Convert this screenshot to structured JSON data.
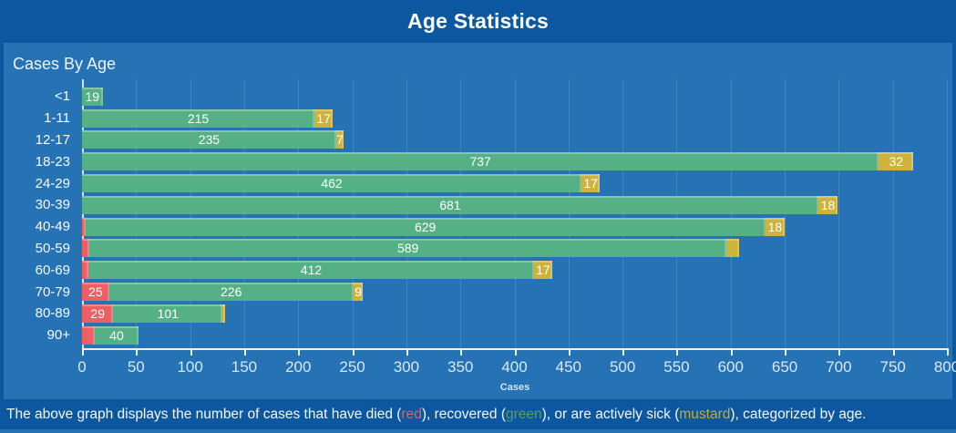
{
  "header": {
    "title": "Age Statistics"
  },
  "panel": {
    "subtitle": "Cases By Age"
  },
  "axis": {
    "label": "Cases",
    "ticks": [
      0,
      50,
      100,
      150,
      200,
      250,
      300,
      350,
      400,
      450,
      500,
      550,
      600,
      650,
      700,
      750,
      800
    ],
    "max": 800
  },
  "colors": {
    "died": "#ed5f63",
    "recovered": "#55b086",
    "sick": "#cdb23c",
    "panel_bg": "#2573b5",
    "outer_bg": "#0b57a0"
  },
  "chart_data": {
    "type": "bar",
    "orientation": "horizontal",
    "stacked": true,
    "title": "Cases By Age",
    "xlabel": "Cases",
    "xlim": [
      0,
      800
    ],
    "grid": "vertical",
    "categories": [
      "<1",
      "1-11",
      "12-17",
      "18-23",
      "24-29",
      "30-39",
      "40-49",
      "50-59",
      "60-69",
      "70-79",
      "80-89",
      "90+"
    ],
    "series": [
      {
        "name": "died",
        "color_key": "died",
        "values": [
          0,
          0,
          0,
          0,
          0,
          0,
          3,
          7,
          6,
          25,
          29,
          12
        ],
        "labels": [
          "",
          "",
          "",
          "",
          "",
          "",
          "",
          "",
          "",
          "25",
          "29",
          ""
        ]
      },
      {
        "name": "recovered",
        "color_key": "recovered",
        "values": [
          19,
          215,
          235,
          737,
          462,
          681,
          629,
          589,
          412,
          226,
          101,
          40
        ],
        "labels": [
          "19",
          "215",
          "235",
          "737",
          "462",
          "681",
          "629",
          "589",
          "412",
          "226",
          "101",
          "40"
        ]
      },
      {
        "name": "actively_sick",
        "color_key": "sick",
        "values": [
          0,
          17,
          7,
          32,
          17,
          18,
          18,
          12,
          17,
          9,
          2,
          0
        ],
        "labels": [
          "",
          "17",
          "7",
          "32",
          "17",
          "18",
          "18",
          "",
          "17",
          "9",
          "",
          ""
        ]
      }
    ]
  },
  "caption": {
    "parts": [
      {
        "text": "The above graph displays the number of cases that have died (",
        "color": ""
      },
      {
        "text": "red",
        "color": "red"
      },
      {
        "text": "), recovered (",
        "color": ""
      },
      {
        "text": "green",
        "color": "green"
      },
      {
        "text": "), or are actively sick (",
        "color": ""
      },
      {
        "text": "mustard",
        "color": "mustard"
      },
      {
        "text": "), categorized by age.",
        "color": ""
      }
    ],
    "colors": {
      "red": "#d06a6a",
      "green": "#5f9c58",
      "mustard": "#c2ab3b"
    }
  }
}
